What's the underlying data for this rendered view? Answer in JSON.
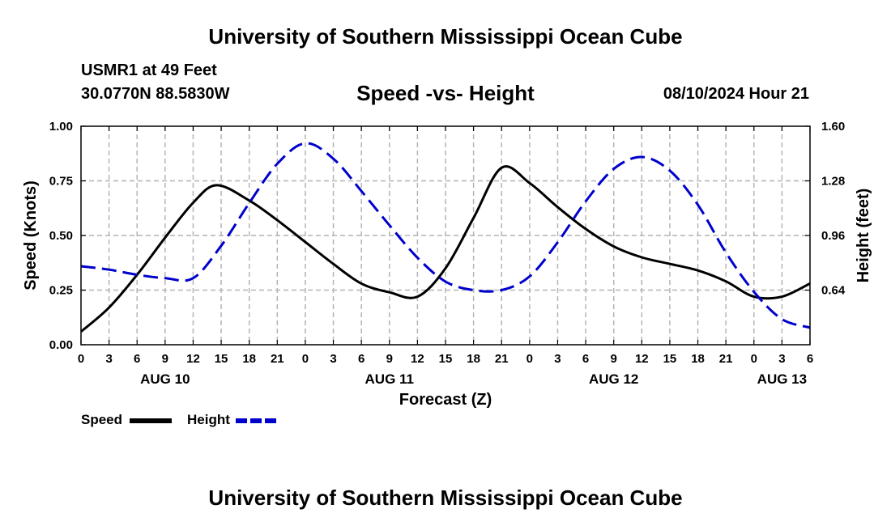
{
  "header": {
    "title": "University of Southern Mississippi Ocean Cube",
    "station": "USMR1 at 49 Feet",
    "coordinates": "30.0770N  88.5830W",
    "subtitle": "Speed -vs- Height",
    "datetime": "08/10/2024 Hour 21"
  },
  "footer": {
    "title": "University of Southern Mississippi Ocean Cube"
  },
  "legend": {
    "speed_label": "Speed",
    "height_label": "Height"
  },
  "colors": {
    "speed": "#000000",
    "height": "#0000cc",
    "grid": "#b4b4b4"
  },
  "chart_data": {
    "type": "line",
    "title": "Speed -vs- Height",
    "xlabel": "Forecast (Z)",
    "ylabel": "Speed (Knots)",
    "y2label": "Height (feet)",
    "grid": true,
    "xlim": [
      0,
      78
    ],
    "ylim": [
      0,
      1.0
    ],
    "y2lim": [
      0.32,
      1.6
    ],
    "x_ticks": [
      0,
      3,
      6,
      9,
      12,
      15,
      18,
      21,
      24,
      27,
      30,
      33,
      36,
      39,
      42,
      45,
      48,
      51,
      54,
      57,
      60,
      63,
      66,
      69,
      72,
      75,
      78
    ],
    "x_tick_labels": [
      "0",
      "3",
      "6",
      "9",
      "12",
      "15",
      "18",
      "21",
      "0",
      "3",
      "6",
      "9",
      "12",
      "15",
      "18",
      "21",
      "0",
      "3",
      "6",
      "9",
      "12",
      "15",
      "18",
      "21",
      "0",
      "3",
      "6"
    ],
    "date_labels": [
      {
        "x": 9,
        "label": "AUG 10"
      },
      {
        "x": 33,
        "label": "AUG 11"
      },
      {
        "x": 57,
        "label": "AUG 12"
      },
      {
        "x": 75,
        "label": "AUG 13"
      }
    ],
    "y_ticks": [
      0,
      0.25,
      0.5,
      0.75,
      1.0
    ],
    "y_tick_labels": [
      "0.00",
      "0.25",
      "0.50",
      "0.75",
      "1.00"
    ],
    "y2_ticks": [
      0.64,
      0.96,
      1.28,
      1.6
    ],
    "y2_tick_labels": [
      "0.64",
      "0.96",
      "1.28",
      "1.60"
    ],
    "series": [
      {
        "name": "Speed",
        "axis": "left",
        "style": "solid",
        "x": [
          0,
          3,
          6,
          9,
          12,
          14.5,
          18,
          21,
          24,
          27,
          30,
          33,
          36,
          39,
          42,
          45,
          48,
          51,
          54,
          57,
          60,
          63,
          66,
          69,
          72,
          75,
          78
        ],
        "values": [
          0.06,
          0.17,
          0.32,
          0.49,
          0.65,
          0.73,
          0.66,
          0.57,
          0.47,
          0.37,
          0.28,
          0.24,
          0.22,
          0.35,
          0.58,
          0.81,
          0.74,
          0.63,
          0.53,
          0.45,
          0.4,
          0.37,
          0.34,
          0.29,
          0.22,
          0.22,
          0.28
        ]
      },
      {
        "name": "Height",
        "axis": "right",
        "style": "dashed",
        "x": [
          0,
          3,
          6,
          9,
          12,
          15,
          18,
          21,
          24,
          27,
          30,
          33,
          36,
          39,
          42,
          45,
          48,
          51,
          54,
          57,
          60,
          63,
          66,
          69,
          72,
          75,
          78
        ],
        "values": [
          0.78,
          0.76,
          0.73,
          0.71,
          0.71,
          0.9,
          1.15,
          1.38,
          1.5,
          1.41,
          1.22,
          1.02,
          0.83,
          0.69,
          0.64,
          0.64,
          0.72,
          0.92,
          1.16,
          1.35,
          1.42,
          1.34,
          1.14,
          0.86,
          0.63,
          0.47,
          0.42
        ]
      }
    ]
  }
}
